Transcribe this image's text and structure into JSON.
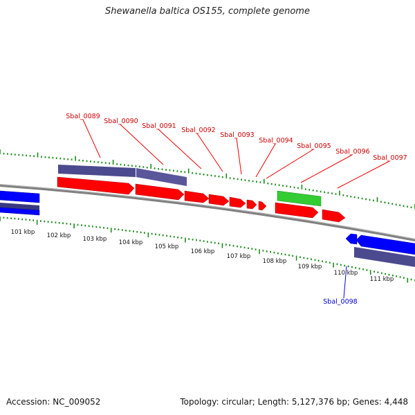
{
  "title": "Shewanella baltica OS155, complete genome",
  "accession": "Accession: NC_009052",
  "summary": "Topology: circular; Length: 5,127,376 bp; Genes: 4,448",
  "colors": {
    "forward_gene": "#ff0000",
    "reverse_gene": "#0000ff",
    "rna_gene": "#33cc33",
    "feature_bar": "#4b4a8e",
    "backbone": "#808080",
    "ticks": "#1a8a1a",
    "forward_label": "#cc0000",
    "reverse_label": "#0000cc"
  },
  "scale_labels": [
    "101 kbp",
    "102 kbp",
    "103 kbp",
    "104 kbp",
    "105 kbp",
    "106 kbp",
    "107 kbp",
    "108 kbp",
    "109 kbp",
    "110 kbp",
    "111 kbp"
  ],
  "gene_labels": [
    {
      "text": "Sbal_0089",
      "strand": "forward"
    },
    {
      "text": "Sbal_0090",
      "strand": "forward"
    },
    {
      "text": "Sbal_0091",
      "strand": "forward"
    },
    {
      "text": "Sbal_0092",
      "strand": "forward"
    },
    {
      "text": "Sbal_0093",
      "strand": "forward"
    },
    {
      "text": "Sbal_0094",
      "strand": "forward"
    },
    {
      "text": "Sbal_0095",
      "strand": "forward"
    },
    {
      "text": "Sbal_0096",
      "strand": "forward"
    },
    {
      "text": "Sbal_0097",
      "strand": "forward"
    },
    {
      "text": "Sbal_0098",
      "strand": "reverse"
    }
  ]
}
